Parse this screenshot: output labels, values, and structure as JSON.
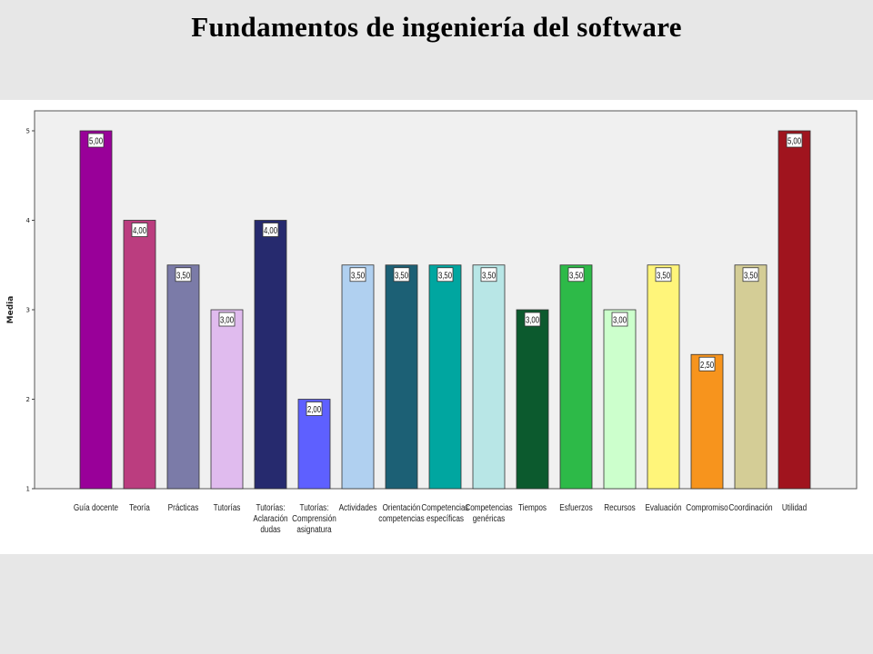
{
  "page": {
    "title": "Fundamentos de ingeniería del software"
  },
  "chart_data": {
    "type": "bar",
    "title": "",
    "xlabel": "",
    "ylabel": "Media",
    "ylim": [
      1,
      5
    ],
    "yticks": [
      "1",
      "2",
      "3",
      "4",
      "5"
    ],
    "grid": false,
    "legend": "none",
    "plot_background": "#f0f0f0",
    "categories": [
      [
        "Guía docente"
      ],
      [
        "Teoría"
      ],
      [
        "Prácticas"
      ],
      [
        "Tutorías"
      ],
      [
        "Tutorías:",
        "Aclaración",
        "dudas"
      ],
      [
        "Tutorías:",
        "Comprensión",
        "asignatura"
      ],
      [
        "Actividades"
      ],
      [
        "Orientación",
        "competencias"
      ],
      [
        "Competencias",
        "específicas"
      ],
      [
        "Competencias",
        "genéricas"
      ],
      [
        "Tiempos"
      ],
      [
        "Esfuerzos"
      ],
      [
        "Recursos"
      ],
      [
        "Evaluación"
      ],
      [
        "Compromiso"
      ],
      [
        "Coordinación"
      ],
      [
        "Utilidad"
      ]
    ],
    "values": [
      5.0,
      4.0,
      3.5,
      3.0,
      4.0,
      2.0,
      3.5,
      3.5,
      3.5,
      3.5,
      3.0,
      3.5,
      3.0,
      3.5,
      2.5,
      3.5,
      5.0
    ],
    "value_labels": [
      "5,00",
      "4,00",
      "3,50",
      "3,00",
      "4,00",
      "2,00",
      "3,50",
      "3,50",
      "3,50",
      "3,50",
      "3,00",
      "3,50",
      "3,00",
      "3,50",
      "2,50",
      "3,50",
      "5,00"
    ],
    "colors": [
      "#990099",
      "#bb3d7f",
      "#7b7ba8",
      "#e0bbee",
      "#262a6e",
      "#5e60ff",
      "#b0d0f0",
      "#1c6075",
      "#00a6a0",
      "#b8e6e6",
      "#0c5a2e",
      "#2dba48",
      "#ccffcc",
      "#fff57a",
      "#f7941d",
      "#d4cd96",
      "#a0141e"
    ]
  }
}
